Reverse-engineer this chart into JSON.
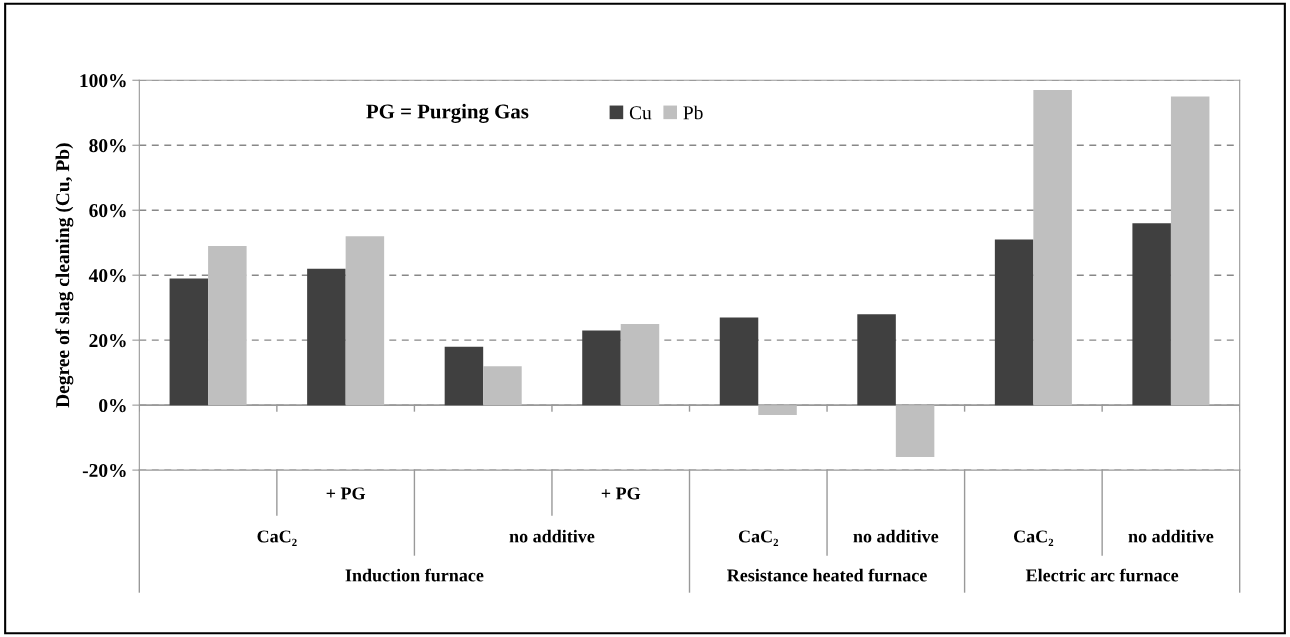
{
  "chart_data": {
    "type": "bar",
    "ylabel": "Degree of slag cleaning (Cu, Pb)",
    "categories": [
      null,
      "+ PG",
      null,
      "+ PG",
      null,
      null,
      null,
      null
    ],
    "series": [
      {
        "name": "Cu",
        "color": "#404040",
        "values": [
          39,
          42,
          18,
          23,
          27,
          28,
          51,
          56
        ]
      },
      {
        "name": "Pb",
        "color": "#bfbfbf",
        "values": [
          49,
          52,
          12,
          25,
          -3,
          -16,
          97,
          95
        ]
      }
    ],
    "ylim": [
      -20,
      100
    ],
    "yticks": [
      {
        "value": -20,
        "label": "-20%"
      },
      {
        "value": 0,
        "label": "0%"
      },
      {
        "value": 20,
        "label": "20%"
      },
      {
        "value": 40,
        "label": "40%"
      },
      {
        "value": 60,
        "label": "60%"
      },
      {
        "value": 80,
        "label": "80%"
      },
      {
        "value": 100,
        "label": "100%"
      }
    ],
    "grid": "y",
    "legend": "top",
    "annotations": [
      "PG = Purging Gas",
      "CaC₂",
      "no additive",
      "CaC₂",
      "no additive",
      "CaC₂",
      "no additive",
      "Induction furnace",
      "Resistance heated furnace",
      "Electric arc furnace"
    ]
  }
}
